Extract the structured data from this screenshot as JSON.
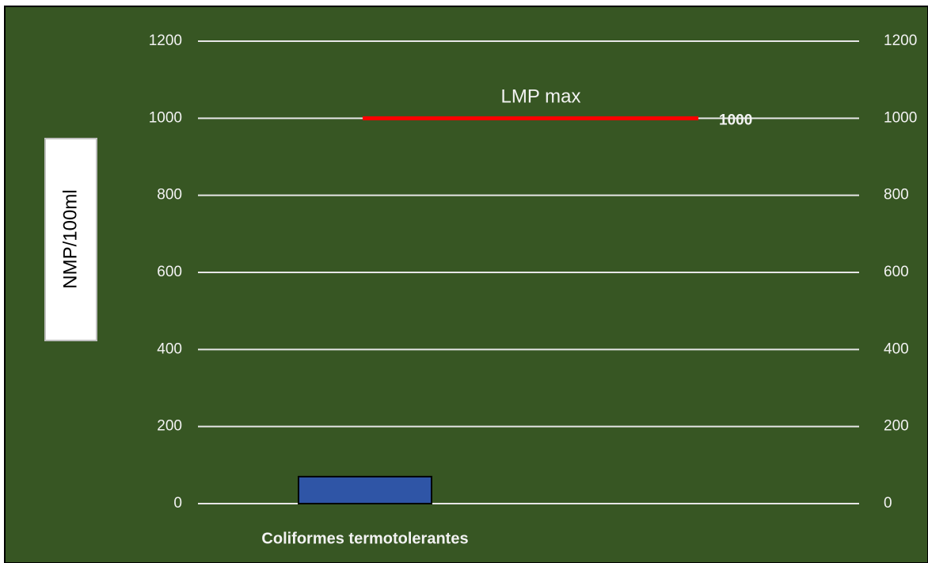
{
  "chart_data": {
    "type": "bar",
    "y_label": "NMP/100ml",
    "categories": [
      "Coliformes termotolerantes"
    ],
    "values": [
      70
    ],
    "color": "#2f55a6",
    "ylim": [
      0,
      1200
    ],
    "yticks": [
      0,
      200,
      400,
      600,
      800,
      1000,
      1200
    ],
    "y2lim": [
      0,
      1200
    ],
    "y2ticks": [
      0,
      200,
      400,
      600,
      800,
      1000,
      1200
    ],
    "grid": true,
    "reference_line": {
      "label": "LMP max",
      "value": 1000,
      "color": "#ff0000"
    }
  }
}
